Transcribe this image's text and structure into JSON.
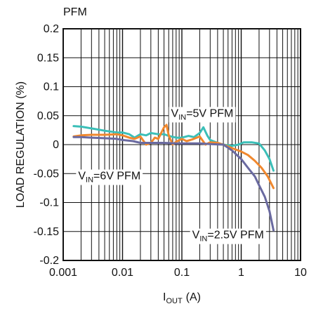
{
  "chart_data": {
    "type": "line",
    "title": "PFM",
    "xlabel_main": "I",
    "xlabel_sub": "OUT",
    "xlabel_unit": "(A)",
    "ylabel": "LOAD REGULATION (%)",
    "x_scale": "log",
    "xlim": [
      0.001,
      10
    ],
    "ylim": [
      -0.2,
      0.2
    ],
    "grid": true,
    "x_ticks": [
      0.001,
      0.01,
      0.1,
      1,
      10
    ],
    "x_tick_labels": [
      "0.001",
      "0.01",
      "0.1",
      "1",
      "10"
    ],
    "y_ticks": [
      0.2,
      0.15,
      0.1,
      0.05,
      0,
      -0.05,
      -0.1,
      -0.15,
      -0.2
    ],
    "y_tick_labels": [
      "0.2",
      "0.15",
      "0.1",
      "0.05",
      "0",
      "-0.05",
      "-0.1",
      "-0.15",
      "-0.2"
    ],
    "series": [
      {
        "name": "VIN=5V PFM",
        "color": "#3bbfb8",
        "x": [
          0.0015,
          0.002,
          0.003,
          0.005,
          0.008,
          0.01,
          0.013,
          0.016,
          0.02,
          0.025,
          0.03,
          0.04,
          0.05,
          0.06,
          0.08,
          0.1,
          0.13,
          0.16,
          0.2,
          0.23,
          0.27,
          0.3,
          0.4,
          0.5,
          0.7,
          0.9,
          1.1,
          1.5,
          2.0,
          2.5,
          3.0,
          3.5
        ],
        "y": [
          0.032,
          0.031,
          0.028,
          0.024,
          0.021,
          0.021,
          0.018,
          0.012,
          0.018,
          0.016,
          0.02,
          0.018,
          0.018,
          0.015,
          0.012,
          0.012,
          0.015,
          0.013,
          0.02,
          0.03,
          0.015,
          0.008,
          0.003,
          0.0,
          -0.002,
          0.0,
          0.004,
          0.004,
          0.002,
          -0.01,
          -0.025,
          -0.045
        ]
      },
      {
        "name": "VIN=6V PFM",
        "color": "#f0882e",
        "x": [
          0.0015,
          0.002,
          0.003,
          0.005,
          0.008,
          0.01,
          0.013,
          0.016,
          0.02,
          0.025,
          0.03,
          0.035,
          0.04,
          0.05,
          0.055,
          0.06,
          0.07,
          0.08,
          0.1,
          0.12,
          0.15,
          0.2,
          0.25,
          0.3,
          0.4,
          0.5,
          0.7,
          1.0,
          1.3,
          1.7,
          2.2,
          2.8,
          3.5
        ],
        "y": [
          0.014,
          0.016,
          0.017,
          0.017,
          0.018,
          0.016,
          0.012,
          0.01,
          0.014,
          0.0,
          0.003,
          0.012,
          0.01,
          0.03,
          0.034,
          0.016,
          0.0,
          0.005,
          0.01,
          0.006,
          0.009,
          0.014,
          0.0,
          0.004,
          0.003,
          0.0,
          -0.006,
          -0.012,
          -0.018,
          -0.028,
          -0.04,
          -0.055,
          -0.075
        ]
      },
      {
        "name": "VIN=2.5V PFM",
        "color": "#6a6aa0",
        "x": [
          0.0015,
          0.002,
          0.003,
          0.005,
          0.008,
          0.01,
          0.015,
          0.02,
          0.03,
          0.05,
          0.08,
          0.1,
          0.15,
          0.2,
          0.3,
          0.5,
          0.7,
          1.0,
          1.3,
          1.7,
          2.0,
          2.5,
          3.0,
          3.5
        ],
        "y": [
          0.013,
          0.013,
          0.012,
          0.011,
          0.01,
          0.008,
          0.006,
          0.003,
          0.003,
          0.003,
          0.002,
          0.002,
          0.002,
          0.002,
          0.001,
          0.0,
          -0.01,
          -0.025,
          -0.04,
          -0.055,
          -0.07,
          -0.09,
          -0.115,
          -0.148
        ]
      }
    ],
    "annotations": [
      {
        "main": "V",
        "sub": "IN",
        "rest": "=5V PFM",
        "x": 0.22,
        "y": 0.048
      },
      {
        "main": "V",
        "sub": "IN",
        "rest": "=6V PFM",
        "x": 0.006,
        "y": -0.06
      },
      {
        "main": "V",
        "sub": "IN",
        "rest": "=2.5V PFM",
        "x": 0.6,
        "y": -0.162
      }
    ]
  }
}
